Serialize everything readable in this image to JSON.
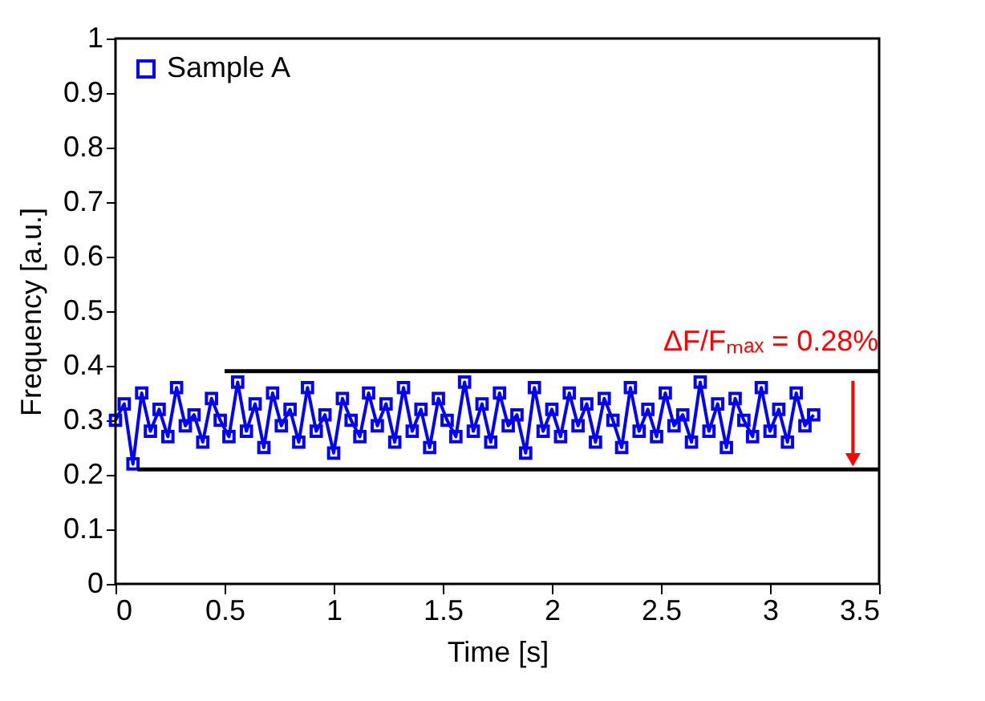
{
  "chart_data": {
    "type": "line",
    "xlabel": "Time [s]",
    "ylabel": "Frequency [a.u.]",
    "xlim": [
      0,
      3.5
    ],
    "xticks": [
      0,
      0.5,
      1,
      1.5,
      2,
      2.5,
      3,
      3.5
    ],
    "ylim": [
      0,
      1
    ],
    "yticks": [
      0,
      0.1,
      0.2,
      0.3,
      0.4,
      0.5,
      0.6,
      0.7,
      0.8,
      0.9,
      1
    ],
    "grid": false,
    "legend": "top left",
    "marker": "square",
    "line_style": "solid",
    "series": [
      {
        "name": "Sample A",
        "color": "#0000ff",
        "x": [
          0,
          0.04,
          0.08,
          0.12,
          0.16,
          0.2,
          0.24,
          0.28,
          0.32,
          0.36,
          0.4,
          0.44,
          0.48,
          0.52,
          0.56,
          0.6,
          0.64,
          0.68,
          0.72,
          0.76,
          0.8,
          0.84,
          0.88,
          0.92,
          0.96,
          1,
          1.04,
          1.08,
          1.12,
          1.16,
          1.2,
          1.24,
          1.28,
          1.32,
          1.36,
          1.4,
          1.44,
          1.48,
          1.52,
          1.56,
          1.6,
          1.64,
          1.68,
          1.72,
          1.76,
          1.8,
          1.84,
          1.88,
          1.92,
          1.96,
          2,
          2.04,
          2.08,
          2.12,
          2.16,
          2.2,
          2.24,
          2.28,
          2.32,
          2.36,
          2.4,
          2.44,
          2.48,
          2.52,
          2.56,
          2.6,
          2.64,
          2.68,
          2.72,
          2.76,
          2.8,
          2.84,
          2.88,
          2.92,
          2.96,
          3,
          3.04,
          3.08,
          3.12,
          3.16,
          3.2
        ],
        "values": [
          0.3,
          0.33,
          0.22,
          0.35,
          0.28,
          0.32,
          0.27,
          0.36,
          0.29,
          0.31,
          0.26,
          0.34,
          0.3,
          0.27,
          0.37,
          0.28,
          0.33,
          0.25,
          0.35,
          0.29,
          0.32,
          0.26,
          0.36,
          0.28,
          0.31,
          0.24,
          0.34,
          0.3,
          0.27,
          0.35,
          0.29,
          0.33,
          0.26,
          0.36,
          0.28,
          0.32,
          0.25,
          0.34,
          0.3,
          0.27,
          0.37,
          0.28,
          0.33,
          0.26,
          0.35,
          0.29,
          0.31,
          0.24,
          0.36,
          0.28,
          0.32,
          0.27,
          0.35,
          0.29,
          0.33,
          0.26,
          0.34,
          0.3,
          0.25,
          0.36,
          0.28,
          0.32,
          0.27,
          0.35,
          0.29,
          0.31,
          0.26,
          0.37,
          0.28,
          0.33,
          0.25,
          0.34,
          0.3,
          0.27,
          0.36,
          0.28,
          0.32,
          0.26,
          0.35,
          0.29,
          0.31
        ]
      },
      {
        "type": "line",
        "color": "#000000",
        "marker": "none",
        "x": [
          0.5,
          3.5
        ],
        "values": [
          0.39,
          0.39
        ]
      },
      {
        "type": "line",
        "color": "#000000",
        "marker": "none",
        "x": [
          0.1,
          3.5
        ],
        "values": [
          0.21,
          0.21
        ]
      }
    ],
    "annotations": [
      {
        "text": "ΔF/Fₘₐₓ = 0.28%",
        "x": 3.38,
        "y": 0.39
      }
    ]
  }
}
